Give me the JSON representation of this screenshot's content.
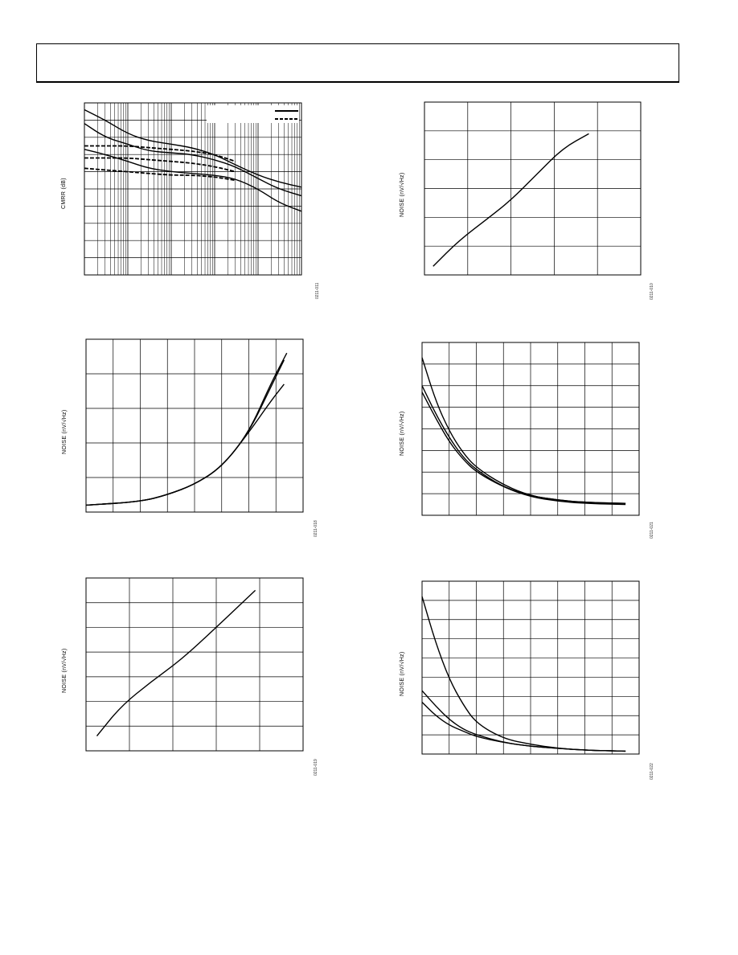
{
  "figures": [
    {
      "id": "cmrr",
      "ylabel": "CMRR (dB)",
      "figcode": "0211-011",
      "chart_data": {
        "type": "line",
        "xscale": "log",
        "ylabel": "CMRR (dB)",
        "xlabel": "",
        "grid": true,
        "legend": "top-right",
        "xlim": [
          1,
          100000
        ],
        "ylim": [
          0,
          10
        ],
        "series": [
          {
            "style": "solid",
            "x": [
              1,
              3,
              10,
              30,
              100,
              300,
              1000,
              3000,
              10000,
              30000,
              100000
            ],
            "y": [
              9.6,
              9.0,
              8.2,
              7.8,
              7.6,
              7.4,
              7.0,
              6.4,
              5.8,
              5.4,
              5.1
            ]
          },
          {
            "style": "solid",
            "x": [
              1,
              3,
              10,
              30,
              100,
              300,
              1000,
              3000,
              10000,
              30000,
              100000
            ],
            "y": [
              8.8,
              8.0,
              7.6,
              7.2,
              7.1,
              7.0,
              6.7,
              6.3,
              5.6,
              5.0,
              4.6
            ]
          },
          {
            "style": "solid",
            "x": [
              1,
              3,
              10,
              30,
              100,
              300,
              1000,
              3000,
              10000,
              30000,
              100000
            ],
            "y": [
              7.3,
              7.0,
              6.6,
              6.2,
              6.0,
              5.9,
              5.8,
              5.6,
              5.0,
              4.2,
              3.7
            ]
          },
          {
            "style": "dashed",
            "x": [
              1,
              3,
              10,
              30,
              100,
              300,
              1000,
              3000
            ],
            "y": [
              7.5,
              7.5,
              7.5,
              7.4,
              7.3,
              7.2,
              7.0,
              6.6
            ]
          },
          {
            "style": "dashed",
            "x": [
              1,
              3,
              10,
              30,
              100,
              300,
              1000,
              3000
            ],
            "y": [
              6.8,
              6.8,
              6.8,
              6.7,
              6.6,
              6.5,
              6.3,
              6.0
            ]
          },
          {
            "style": "dashed",
            "x": [
              1,
              3,
              10,
              30,
              100,
              300,
              1000,
              3000
            ],
            "y": [
              6.2,
              6.1,
              6.0,
              5.9,
              5.8,
              5.8,
              5.7,
              5.5
            ]
          }
        ]
      }
    },
    {
      "id": "noise-tr",
      "ylabel": "NOISE (nV/√Hz)",
      "figcode": "0211-010",
      "chart_data": {
        "type": "line",
        "ylabel": "NOISE (nV/√Hz)",
        "xlabel": "",
        "grid": true,
        "xlim": [
          0,
          5
        ],
        "ylim": [
          0,
          6
        ],
        "series": [
          {
            "x": [
              0.2,
              0.8,
              1.5,
              2.0,
              2.6,
              3.2,
              3.8
            ],
            "y": [
              0.3,
              1.2,
              2.0,
              2.6,
              3.5,
              4.4,
              4.9
            ]
          }
        ]
      }
    },
    {
      "id": "noise-ml",
      "ylabel": "NOISE (nV/√Hz)",
      "figcode": "0211-018",
      "chart_data": {
        "type": "line",
        "ylabel": "NOISE (nV/√Hz)",
        "xlabel": "",
        "grid": true,
        "xlim": [
          0,
          8
        ],
        "ylim": [
          0,
          5
        ],
        "series": [
          {
            "x": [
              0,
              2,
              3,
              4,
              5,
              6,
              6.8,
              7.4
            ],
            "y": [
              0.2,
              0.3,
              0.5,
              0.8,
              1.3,
              2.3,
              3.7,
              4.6
            ]
          },
          {
            "x": [
              0,
              2,
              3,
              4,
              5,
              6,
              6.8,
              7.3
            ],
            "y": [
              0.2,
              0.3,
              0.5,
              0.8,
              1.3,
              2.3,
              3.6,
              4.4
            ]
          },
          {
            "x": [
              0,
              2,
              3,
              4,
              5,
              6,
              6.8,
              7.3
            ],
            "y": [
              0.2,
              0.3,
              0.5,
              0.8,
              1.3,
              2.3,
              3.2,
              3.7
            ]
          }
        ]
      }
    },
    {
      "id": "noise-mr",
      "ylabel": "NOISE (nV/√Hz)",
      "figcode": "0211-021",
      "chart_data": {
        "type": "line",
        "ylabel": "NOISE (nV/√Hz)",
        "xlabel": "",
        "grid": true,
        "xlim": [
          0,
          8
        ],
        "ylim": [
          0,
          8
        ],
        "series": [
          {
            "x": [
              0,
              0.5,
              1,
              1.5,
              2,
              3,
              4,
              5,
              6,
              7.5
            ],
            "y": [
              7.3,
              5.3,
              3.9,
              2.9,
              2.2,
              1.4,
              0.9,
              0.7,
              0.6,
              0.55
            ]
          },
          {
            "x": [
              0,
              0.5,
              1,
              1.5,
              2,
              3,
              4,
              5,
              6,
              7.5
            ],
            "y": [
              6.0,
              4.7,
              3.6,
              2.7,
              2.1,
              1.3,
              0.9,
              0.7,
              0.6,
              0.55
            ]
          },
          {
            "x": [
              0,
              0.5,
              1,
              1.5,
              2,
              3,
              4,
              5,
              6,
              7.5
            ],
            "y": [
              5.7,
              4.5,
              3.4,
              2.6,
              2.0,
              1.3,
              0.85,
              0.65,
              0.55,
              0.5
            ]
          }
        ]
      }
    },
    {
      "id": "noise-bl",
      "ylabel": "NOISE (nV/√Hz)",
      "figcode": "0211-019",
      "chart_data": {
        "type": "line",
        "ylabel": "NOISE (nV/√Hz)",
        "xlabel": "",
        "grid": true,
        "xlim": [
          0,
          5
        ],
        "ylim": [
          0,
          7
        ],
        "series": [
          {
            "x": [
              0.25,
              0.8,
              1.5,
              2.2,
              3.0,
              3.9
            ],
            "y": [
              0.6,
              1.8,
              2.8,
              3.7,
              5.0,
              6.5
            ]
          }
        ]
      }
    },
    {
      "id": "noise-br",
      "ylabel": "NOISE (nV/√Hz)",
      "figcode": "0211-022",
      "chart_data": {
        "type": "line",
        "ylabel": "NOISE (nV/√Hz)",
        "xlabel": "",
        "grid": true,
        "xlim": [
          0,
          8
        ],
        "ylim": [
          0,
          9
        ],
        "series": [
          {
            "x": [
              0,
              0.5,
              1,
              1.5,
              2,
              3,
              4,
              5,
              6,
              7.5
            ],
            "y": [
              8.2,
              5.8,
              3.9,
              2.6,
              1.6,
              0.8,
              0.5,
              0.3,
              0.2,
              0.15
            ]
          },
          {
            "x": [
              0,
              0.5,
              1,
              1.5,
              2,
              3,
              4,
              5,
              6,
              7.5
            ],
            "y": [
              3.3,
              2.5,
              1.8,
              1.3,
              1.0,
              0.6,
              0.4,
              0.3,
              0.2,
              0.15
            ]
          },
          {
            "x": [
              0,
              0.5,
              1,
              1.5,
              2,
              3,
              4,
              5,
              6,
              7.5
            ],
            "y": [
              2.7,
              2.0,
              1.5,
              1.2,
              0.9,
              0.6,
              0.4,
              0.3,
              0.2,
              0.15
            ]
          }
        ]
      }
    }
  ]
}
